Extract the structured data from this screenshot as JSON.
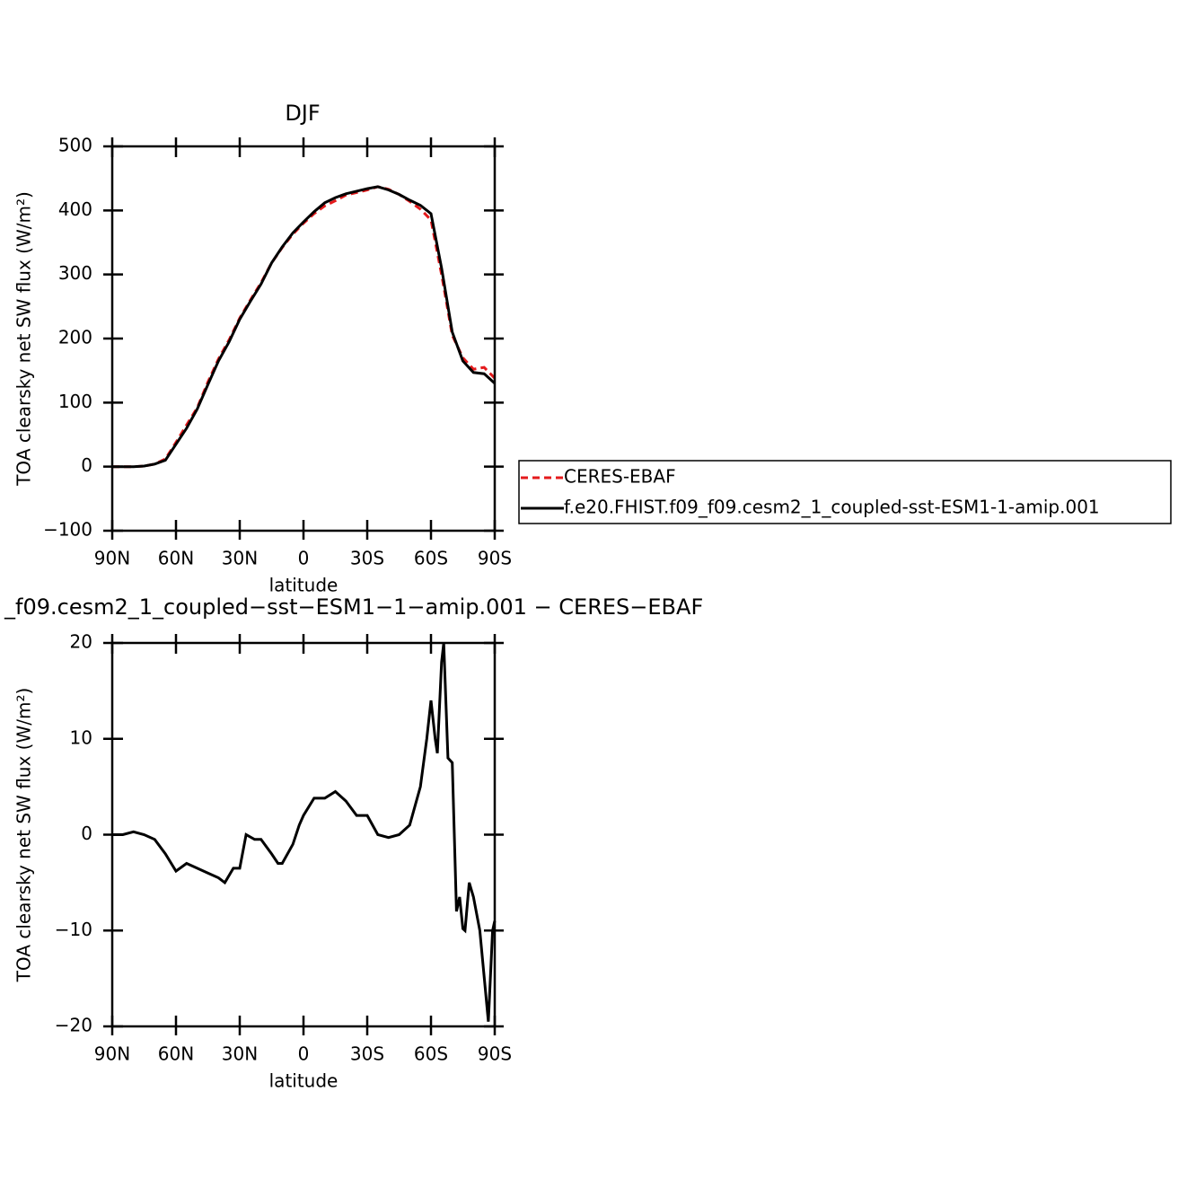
{
  "chart_data": [
    {
      "type": "line",
      "title": "DJF",
      "xlabel": "latitude",
      "ylabel": "TOA clearsky net SW flux (W/m²)",
      "x": [
        90,
        85,
        80,
        75,
        70,
        65,
        60,
        55,
        50,
        45,
        40,
        35,
        30,
        25,
        20,
        15,
        10,
        5,
        0,
        -5,
        -10,
        -15,
        -20,
        -25,
        -30,
        -35,
        -40,
        -45,
        -50,
        -55,
        -60,
        -65,
        -70,
        -75,
        -80,
        -85,
        -90
      ],
      "series": [
        {
          "name": "CERES-EBAF",
          "color": "#e41a1c",
          "dash": true,
          "values": [
            0,
            0,
            0,
            1,
            4,
            12,
            38,
            65,
            92,
            132,
            168,
            198,
            232,
            260,
            287,
            318,
            342,
            363,
            380,
            395,
            407,
            415,
            424,
            428,
            432,
            437,
            433,
            425,
            414,
            402,
            385,
            300,
            205,
            170,
            152,
            155,
            138
          ]
        },
        {
          "name": "f.e20.FHIST.f09_f09.cesm2_1_coupled-sst-ESM1-1-amip.001",
          "color": "#000000",
          "dash": false,
          "values": [
            0,
            0,
            0,
            1,
            4,
            10,
            35,
            60,
            90,
            128,
            165,
            195,
            230,
            258,
            285,
            318,
            343,
            365,
            382,
            398,
            412,
            420,
            426,
            430,
            434,
            437,
            432,
            425,
            416,
            408,
            395,
            310,
            210,
            165,
            147,
            145,
            130
          ]
        }
      ],
      "xlim": [
        90,
        -90
      ],
      "xticks": [
        {
          "value": 90,
          "label": "90N"
        },
        {
          "value": 60,
          "label": "60N"
        },
        {
          "value": 30,
          "label": "30N"
        },
        0,
        {
          "value": -30,
          "label": "30S"
        },
        {
          "value": -60,
          "label": "60S"
        },
        {
          "value": -90,
          "label": "90S"
        }
      ],
      "ylim": [
        -100,
        500
      ],
      "yticks": [
        {
          "value": -100,
          "label": "−100"
        },
        0,
        100,
        200,
        300,
        400,
        500
      ]
    },
    {
      "type": "line",
      "title": "_f09.cesm2_1_coupled−sst−ESM1−1−amip.001 − CERES−EBAF",
      "xlabel": "latitude",
      "ylabel": "TOA clearsky net SW flux (W/m²)",
      "x": [
        90,
        85,
        80,
        75,
        70,
        65,
        60,
        55,
        50,
        45,
        40,
        37,
        33,
        30,
        27,
        23,
        20,
        15,
        12,
        10,
        5,
        2,
        0,
        -5,
        -10,
        -15,
        -20,
        -25,
        -30,
        -35,
        -40,
        -45,
        -50,
        -55,
        -58,
        -60,
        -62,
        -63,
        -65,
        -66,
        -68,
        -70,
        -72,
        -73.5,
        -75,
        -76,
        -78,
        -80,
        -83,
        -87,
        -89,
        -90
      ],
      "series": [
        {
          "color": "#000000",
          "dash": false,
          "values": [
            0,
            0,
            0.3,
            0,
            -0.5,
            -2,
            -3.8,
            -3,
            -3.5,
            -4,
            -4.5,
            -5,
            -3.5,
            -3.5,
            0,
            -0.5,
            -0.5,
            -2,
            -3,
            -3,
            -1,
            1,
            2,
            3.8,
            3.8,
            4.5,
            3.5,
            2,
            2,
            0,
            -0.3,
            0,
            1,
            5,
            10,
            14,
            10,
            8.5,
            18,
            20,
            8,
            7.5,
            -8,
            -6.5,
            -9.8,
            -10,
            -5,
            -6.5,
            -10,
            -19.5,
            -10,
            -9
          ]
        }
      ],
      "xlim": [
        90,
        -90
      ],
      "xticks": [
        {
          "value": 90,
          "label": "90N"
        },
        {
          "value": 60,
          "label": "60N"
        },
        {
          "value": 30,
          "label": "30N"
        },
        0,
        {
          "value": -30,
          "label": "30S"
        },
        {
          "value": -60,
          "label": "60S"
        },
        {
          "value": -90,
          "label": "90S"
        }
      ],
      "ylim": [
        -20,
        20
      ],
      "yticks": [
        {
          "value": -20,
          "label": "−20"
        },
        {
          "value": -10,
          "label": "−10"
        },
        0,
        10,
        20
      ]
    }
  ]
}
